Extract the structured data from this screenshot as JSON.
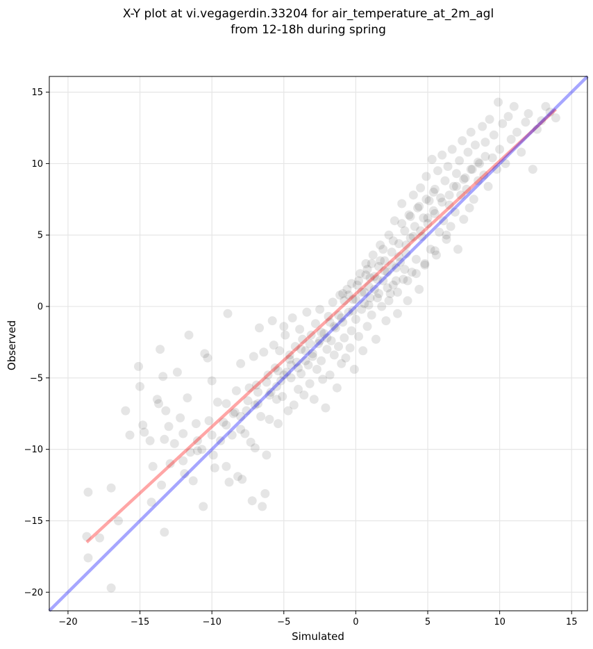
{
  "chart_data": {
    "type": "scatter",
    "title": "X-Y plot at vi.vegagerdin.33204 for air_temperature_at_2m_agl",
    "subtitle": "from 12-18h during spring",
    "xlabel": "Simulated",
    "ylabel": "Observed",
    "xlim": [
      -21.3,
      16.1
    ],
    "ylim": [
      -21.3,
      16.1
    ],
    "xticks": [
      -20,
      -15,
      -10,
      -5,
      0,
      5,
      10,
      15
    ],
    "yticks": [
      -20,
      -15,
      -10,
      -5,
      0,
      5,
      10,
      15
    ],
    "xtick_labels": [
      "−20",
      "−15",
      "−10",
      "−5",
      "0",
      "5",
      "10",
      "15"
    ],
    "ytick_labels": [
      "−20",
      "−15",
      "−10",
      "−5",
      "0",
      "5",
      "10",
      "15"
    ],
    "grid": true,
    "point_color": "#000000",
    "point_alpha": 0.1,
    "lines": [
      {
        "label": "fit",
        "color": "#ff0000",
        "alpha": 0.35,
        "points": [
          [
            -18.7,
            -16.5
          ],
          [
            13.9,
            13.8
          ]
        ]
      },
      {
        "label": "identity",
        "color": "#0000ff",
        "alpha": 0.35,
        "points": [
          [
            -21.3,
            -21.3
          ],
          [
            16.1,
            16.1
          ]
        ]
      }
    ],
    "points": [
      [
        -18.6,
        -13.0
      ],
      [
        -18.7,
        -16.1
      ],
      [
        -18.6,
        -17.6
      ],
      [
        -17.8,
        -16.2
      ],
      [
        -17.0,
        -12.7
      ],
      [
        -17.0,
        -19.7
      ],
      [
        -16.5,
        -15.0
      ],
      [
        -16.0,
        -7.3
      ],
      [
        -15.7,
        -9.0
      ],
      [
        -15.1,
        -4.2
      ],
      [
        -15.0,
        -5.6
      ],
      [
        -14.8,
        -8.3
      ],
      [
        -14.7,
        -8.8
      ],
      [
        -14.3,
        -9.4
      ],
      [
        -14.2,
        -13.7
      ],
      [
        -14.1,
        -11.2
      ],
      [
        -13.8,
        -6.5
      ],
      [
        -13.7,
        -6.8
      ],
      [
        -13.6,
        -3.0
      ],
      [
        -13.5,
        -12.5
      ],
      [
        -13.4,
        -4.9
      ],
      [
        -13.3,
        -15.8
      ],
      [
        -13.3,
        -9.3
      ],
      [
        -13.2,
        -7.3
      ],
      [
        -13.0,
        -8.4
      ],
      [
        -12.9,
        -11.0
      ],
      [
        -12.6,
        -9.6
      ],
      [
        -12.4,
        -4.6
      ],
      [
        -12.2,
        -7.8
      ],
      [
        -12.0,
        -8.9
      ],
      [
        -11.9,
        -11.7
      ],
      [
        -11.7,
        -6.4
      ],
      [
        -11.6,
        -2.0
      ],
      [
        -11.5,
        -10.2
      ],
      [
        -11.3,
        -12.2
      ],
      [
        -11.1,
        -8.2
      ],
      [
        -11.0,
        -9.4
      ],
      [
        -10.7,
        -10.0
      ],
      [
        -10.6,
        -14.0
      ],
      [
        -10.5,
        -3.3
      ],
      [
        -10.3,
        -3.6
      ],
      [
        -10.2,
        -8.0
      ],
      [
        -10.0,
        -5.2
      ],
      [
        -9.9,
        -10.4
      ],
      [
        -9.8,
        -11.3
      ],
      [
        -9.6,
        -6.7
      ],
      [
        -9.4,
        -9.4
      ],
      [
        -9.2,
        -8.1
      ],
      [
        -9.0,
        -11.2
      ],
      [
        -9.0,
        -6.8
      ],
      [
        -8.9,
        -0.5
      ],
      [
        -8.8,
        -12.3
      ],
      [
        -8.6,
        -9.0
      ],
      [
        -8.5,
        -7.5
      ],
      [
        -8.3,
        -5.9
      ],
      [
        -8.2,
        -11.9
      ],
      [
        -8.0,
        -8.6
      ],
      [
        -8.0,
        -4.0
      ],
      [
        -7.9,
        -12.1
      ],
      [
        -7.7,
        -8.9
      ],
      [
        -7.6,
        -7.3
      ],
      [
        -7.4,
        -5.7
      ],
      [
        -7.3,
        -9.5
      ],
      [
        -7.2,
        -13.6
      ],
      [
        -7.1,
        -3.5
      ],
      [
        -7.0,
        -9.9
      ],
      [
        -6.9,
        -5.5
      ],
      [
        -6.8,
        -6.8
      ],
      [
        -6.7,
        -1.5
      ],
      [
        -6.6,
        -7.7
      ],
      [
        -6.5,
        -14.0
      ],
      [
        -6.4,
        -3.2
      ],
      [
        -6.3,
        -13.1
      ],
      [
        -6.2,
        -10.4
      ],
      [
        -6.1,
        -4.8
      ],
      [
        -6.0,
        -7.9
      ],
      [
        -5.9,
        -6.0
      ],
      [
        -5.8,
        -1.0
      ],
      [
        -5.7,
        -2.7
      ],
      [
        -5.6,
        -4.3
      ],
      [
        -5.5,
        -6.5
      ],
      [
        -5.4,
        -8.2
      ],
      [
        -5.3,
        -3.1
      ],
      [
        -5.2,
        -5.2
      ],
      [
        -5.1,
        -6.3
      ],
      [
        -5.0,
        -1.4
      ],
      [
        -4.9,
        -2.0
      ],
      [
        -4.8,
        -4.6
      ],
      [
        -4.7,
        -7.3
      ],
      [
        -4.6,
        -3.4
      ],
      [
        -4.5,
        -5.0
      ],
      [
        -4.4,
        -0.8
      ],
      [
        -4.3,
        -6.9
      ],
      [
        -4.2,
        -2.8
      ],
      [
        -4.1,
        -3.9
      ],
      [
        -4.0,
        -5.8
      ],
      [
        -3.9,
        -1.6
      ],
      [
        -3.8,
        -4.7
      ],
      [
        -3.7,
        -2.3
      ],
      [
        -3.6,
        -6.2
      ],
      [
        -3.5,
        -3.1
      ],
      [
        -3.4,
        -0.4
      ],
      [
        -3.3,
        -4.1
      ],
      [
        -3.2,
        -5.4
      ],
      [
        -3.1,
        -2.0
      ],
      [
        -3.0,
        -3.5
      ],
      [
        -2.9,
        -6.5
      ],
      [
        -2.8,
        -1.2
      ],
      [
        -2.7,
        -4.4
      ],
      [
        -2.6,
        -2.6
      ],
      [
        -2.5,
        -0.2
      ],
      [
        -2.4,
        -3.8
      ],
      [
        -2.3,
        -5.1
      ],
      [
        -2.2,
        -1.9
      ],
      [
        -2.1,
        -7.1
      ],
      [
        -2.0,
        -3.0
      ],
      [
        -1.9,
        -0.7
      ],
      [
        -1.8,
        -4.8
      ],
      [
        -1.7,
        -2.4
      ],
      [
        -1.6,
        0.3
      ],
      [
        -1.5,
        -3.4
      ],
      [
        -1.4,
        -1.5
      ],
      [
        -1.3,
        -5.7
      ],
      [
        -1.2,
        -2.8
      ],
      [
        -1.1,
        0.8
      ],
      [
        -1.0,
        -4.0
      ],
      [
        -0.9,
        -1.1
      ],
      [
        -0.8,
        -2.2
      ],
      [
        -0.7,
        -3.6
      ],
      [
        -0.6,
        1.2
      ],
      [
        -0.5,
        -0.4
      ],
      [
        -0.4,
        -2.9
      ],
      [
        -0.3,
        -1.7
      ],
      [
        -0.2,
        0.5
      ],
      [
        -0.1,
        -4.4
      ],
      [
        0.0,
        -0.9
      ],
      [
        0.1,
        1.5
      ],
      [
        0.2,
        -2.1
      ],
      [
        0.3,
        2.3
      ],
      [
        0.4,
        -0.2
      ],
      [
        0.5,
        -3.1
      ],
      [
        0.6,
        1.0
      ],
      [
        0.7,
        3.0
      ],
      [
        0.8,
        -1.4
      ],
      [
        0.9,
        0.1
      ],
      [
        1.0,
        2.0
      ],
      [
        1.1,
        -0.6
      ],
      [
        1.2,
        3.6
      ],
      [
        1.3,
        1.2
      ],
      [
        1.4,
        -2.3
      ],
      [
        1.5,
        0.6
      ],
      [
        1.6,
        2.8
      ],
      [
        1.7,
        4.3
      ],
      [
        1.8,
        0.0
      ],
      [
        1.9,
        1.8
      ],
      [
        2.0,
        3.2
      ],
      [
        2.1,
        -1.0
      ],
      [
        2.2,
        2.4
      ],
      [
        2.3,
        5.0
      ],
      [
        2.4,
        0.9
      ],
      [
        2.5,
        3.8
      ],
      [
        2.6,
        1.5
      ],
      [
        2.7,
        6.0
      ],
      [
        2.8,
        2.7
      ],
      [
        2.9,
        -0.5
      ],
      [
        3.0,
        4.4
      ],
      [
        3.1,
        3.1
      ],
      [
        3.2,
        7.2
      ],
      [
        3.3,
        1.9
      ],
      [
        3.4,
        5.3
      ],
      [
        3.5,
        3.7
      ],
      [
        3.6,
        0.4
      ],
      [
        3.7,
        6.4
      ],
      [
        3.8,
        4.8
      ],
      [
        3.9,
        2.4
      ],
      [
        4.0,
        7.8
      ],
      [
        4.1,
        5.6
      ],
      [
        4.2,
        3.3
      ],
      [
        4.3,
        6.9
      ],
      [
        4.4,
        1.2
      ],
      [
        4.5,
        8.3
      ],
      [
        4.6,
        4.9
      ],
      [
        4.7,
        6.2
      ],
      [
        4.8,
        3.0
      ],
      [
        4.9,
        9.1
      ],
      [
        5.0,
        5.8
      ],
      [
        5.1,
        7.4
      ],
      [
        5.2,
        4.0
      ],
      [
        5.3,
        10.3
      ],
      [
        5.4,
        6.7
      ],
      [
        5.5,
        8.2
      ],
      [
        5.6,
        3.6
      ],
      [
        5.7,
        9.5
      ],
      [
        5.8,
        5.2
      ],
      [
        5.9,
        7.6
      ],
      [
        6.0,
        10.6
      ],
      [
        6.1,
        6.0
      ],
      [
        6.2,
        8.8
      ],
      [
        6.3,
        4.7
      ],
      [
        6.4,
        9.8
      ],
      [
        6.5,
        7.1
      ],
      [
        6.6,
        5.6
      ],
      [
        6.7,
        11.0
      ],
      [
        6.8,
        8.4
      ],
      [
        6.9,
        6.6
      ],
      [
        7.0,
        9.3
      ],
      [
        7.1,
        4.0
      ],
      [
        7.2,
        10.2
      ],
      [
        7.3,
        7.8
      ],
      [
        7.4,
        11.6
      ],
      [
        7.5,
        6.1
      ],
      [
        7.6,
        9.0
      ],
      [
        7.7,
        8.2
      ],
      [
        7.8,
        10.8
      ],
      [
        7.9,
        6.9
      ],
      [
        8.0,
        12.2
      ],
      [
        8.1,
        9.6
      ],
      [
        8.2,
        7.5
      ],
      [
        8.3,
        11.3
      ],
      [
        8.5,
        8.8
      ],
      [
        8.6,
        10.0
      ],
      [
        8.8,
        12.6
      ],
      [
        8.9,
        9.2
      ],
      [
        9.0,
        11.5
      ],
      [
        9.2,
        8.4
      ],
      [
        9.3,
        13.1
      ],
      [
        9.5,
        10.4
      ],
      [
        9.6,
        12.0
      ],
      [
        9.8,
        9.6
      ],
      [
        9.9,
        14.3
      ],
      [
        10.0,
        11.0
      ],
      [
        10.2,
        12.8
      ],
      [
        10.4,
        10.0
      ],
      [
        10.6,
        13.3
      ],
      [
        10.8,
        11.7
      ],
      [
        11.0,
        14.0
      ],
      [
        11.2,
        12.2
      ],
      [
        11.5,
        10.8
      ],
      [
        11.8,
        12.9
      ],
      [
        12.0,
        13.5
      ],
      [
        12.3,
        9.6
      ],
      [
        12.6,
        12.4
      ],
      [
        12.9,
        13.0
      ],
      [
        13.2,
        14.0
      ],
      [
        13.5,
        13.6
      ],
      [
        13.9,
        13.2
      ],
      [
        -0.5,
        0.8
      ],
      [
        0.2,
        1.8
      ],
      [
        0.8,
        2.6
      ],
      [
        1.3,
        2.1
      ],
      [
        1.7,
        3.2
      ],
      [
        0.4,
        1.0
      ],
      [
        -0.2,
        -0.3
      ],
      [
        0.9,
        1.4
      ],
      [
        1.5,
        1.9
      ],
      [
        2.0,
        2.5
      ],
      [
        2.5,
        2.9
      ],
      [
        -1.0,
        -0.8
      ],
      [
        -1.5,
        -1.4
      ],
      [
        -2.0,
        -2.2
      ],
      [
        -2.5,
        -2.4
      ],
      [
        -3.0,
        -3.3
      ],
      [
        -3.5,
        -3.8
      ],
      [
        -4.0,
        -4.3
      ],
      [
        -4.5,
        -4.1
      ],
      [
        -5.0,
        -4.8
      ],
      [
        -5.5,
        -5.6
      ],
      [
        -6.0,
        -6.2
      ],
      [
        -7.0,
        -6.9
      ],
      [
        -8.0,
        -7.7
      ],
      [
        -9.0,
        -8.3
      ],
      [
        -10.0,
        -9.0
      ],
      [
        -11.0,
        -10.1
      ],
      [
        -12.0,
        -10.8
      ],
      [
        3.0,
        3.5
      ],
      [
        3.5,
        4.3
      ],
      [
        4.0,
        4.9
      ],
      [
        4.5,
        5.3
      ],
      [
        5.0,
        6.2
      ],
      [
        5.5,
        6.5
      ],
      [
        6.0,
        7.3
      ],
      [
        6.5,
        7.8
      ],
      [
        7.0,
        8.4
      ],
      [
        7.5,
        8.9
      ],
      [
        8.0,
        9.6
      ],
      [
        8.5,
        10.1
      ],
      [
        9.0,
        10.5
      ],
      [
        1.0,
        0.6
      ],
      [
        1.6,
        0.9
      ],
      [
        2.2,
        1.3
      ],
      [
        2.8,
        1.8
      ],
      [
        3.4,
        2.6
      ],
      [
        0.0,
        0.5
      ],
      [
        0.6,
        0.2
      ],
      [
        -0.8,
        0.4
      ],
      [
        -1.2,
        -0.6
      ],
      [
        -1.8,
        -1.1
      ],
      [
        -2.4,
        -1.8
      ],
      [
        -3.2,
        -2.6
      ],
      [
        -3.8,
        -3.0
      ],
      [
        -4.6,
        -3.7
      ],
      [
        -5.4,
        -4.5
      ],
      [
        -6.2,
        -5.3
      ],
      [
        -6.8,
        -6.0
      ],
      [
        -7.5,
        -6.6
      ],
      [
        -8.4,
        -7.4
      ],
      [
        1.1,
        3.0
      ],
      [
        0.7,
        2.2
      ],
      [
        1.9,
        4.0
      ],
      [
        2.6,
        4.6
      ],
      [
        -0.3,
        1.6
      ],
      [
        -0.9,
        0.9
      ],
      [
        3.2,
        5.8
      ],
      [
        3.8,
        6.3
      ],
      [
        4.4,
        7.0
      ],
      [
        4.9,
        7.5
      ],
      [
        5.4,
        8.0
      ],
      [
        2.3,
        0.4
      ],
      [
        2.9,
        1.0
      ],
      [
        3.6,
        1.8
      ],
      [
        4.2,
        2.3
      ],
      [
        4.8,
        2.9
      ],
      [
        5.5,
        3.9
      ],
      [
        6.3,
        5.0
      ]
    ]
  }
}
